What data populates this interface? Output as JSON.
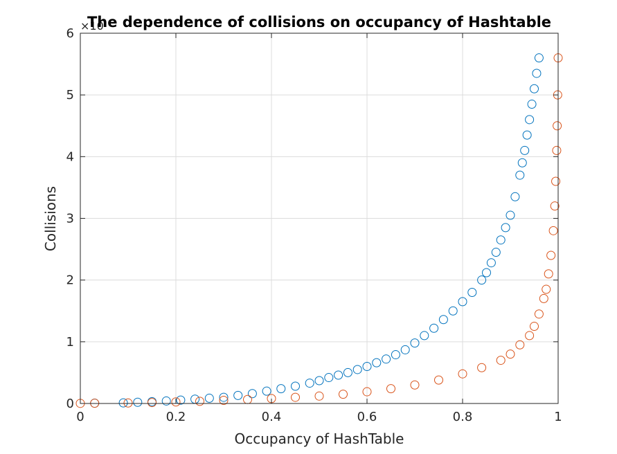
{
  "chart_data": {
    "type": "scatter",
    "title": "The dependence of collisions on occupancy of Hashtable",
    "xlabel": "Occupancy of HashTable",
    "ylabel": "Collisions",
    "y_exponent_label": "×10",
    "y_exponent_power": "",
    "xlim": [
      0,
      1
    ],
    "ylim": [
      0,
      6
    ],
    "xticks": [
      0,
      0.2,
      0.4,
      0.6,
      0.8,
      1
    ],
    "xtick_labels": [
      "0",
      "0.2",
      "0.4",
      "0.6",
      "0.8",
      "1"
    ],
    "yticks": [
      0,
      1,
      2,
      3,
      4,
      5,
      6
    ],
    "ytick_labels": [
      "0",
      "1",
      "2",
      "3",
      "4",
      "5",
      "6"
    ],
    "grid": true,
    "legend": "none",
    "series": [
      {
        "color": "#0072BD",
        "marker": "circle-open",
        "x": [
          0.03,
          0.09,
          0.12,
          0.15,
          0.18,
          0.21,
          0.24,
          0.27,
          0.3,
          0.33,
          0.36,
          0.39,
          0.42,
          0.45,
          0.48,
          0.5,
          0.52,
          0.54,
          0.56,
          0.58,
          0.6,
          0.62,
          0.64,
          0.66,
          0.68,
          0.7,
          0.72,
          0.74,
          0.76,
          0.78,
          0.8,
          0.82,
          0.84,
          0.85,
          0.86,
          0.87,
          0.88,
          0.89,
          0.9,
          0.91,
          0.92,
          0.925,
          0.93,
          0.935,
          0.94,
          0.945,
          0.95,
          0.955,
          0.96
        ],
        "y": [
          0.005,
          0.01,
          0.02,
          0.03,
          0.04,
          0.055,
          0.07,
          0.085,
          0.1,
          0.13,
          0.16,
          0.2,
          0.24,
          0.28,
          0.33,
          0.37,
          0.42,
          0.46,
          0.5,
          0.55,
          0.6,
          0.66,
          0.72,
          0.79,
          0.87,
          0.98,
          1.1,
          1.22,
          1.36,
          1.5,
          1.65,
          1.8,
          2.0,
          2.12,
          2.28,
          2.45,
          2.65,
          2.85,
          3.05,
          3.35,
          3.7,
          3.9,
          4.1,
          4.35,
          4.6,
          4.85,
          5.1,
          5.35,
          5.6
        ]
      },
      {
        "color": "#D95319",
        "marker": "circle-open",
        "x": [
          0.0,
          0.03,
          0.1,
          0.15,
          0.2,
          0.25,
          0.3,
          0.35,
          0.4,
          0.45,
          0.5,
          0.55,
          0.6,
          0.65,
          0.7,
          0.75,
          0.8,
          0.84,
          0.88,
          0.9,
          0.92,
          0.94,
          0.95,
          0.96,
          0.97,
          0.975,
          0.98,
          0.985,
          0.99,
          0.993,
          0.995,
          0.997,
          0.998,
          0.999,
          1.0
        ],
        "y": [
          0.002,
          0.004,
          0.008,
          0.015,
          0.025,
          0.035,
          0.05,
          0.065,
          0.08,
          0.1,
          0.12,
          0.15,
          0.19,
          0.24,
          0.3,
          0.38,
          0.48,
          0.58,
          0.7,
          0.8,
          0.95,
          1.1,
          1.25,
          1.45,
          1.7,
          1.85,
          2.1,
          2.4,
          2.8,
          3.2,
          3.6,
          4.1,
          4.5,
          5.0,
          5.6
        ]
      }
    ]
  }
}
